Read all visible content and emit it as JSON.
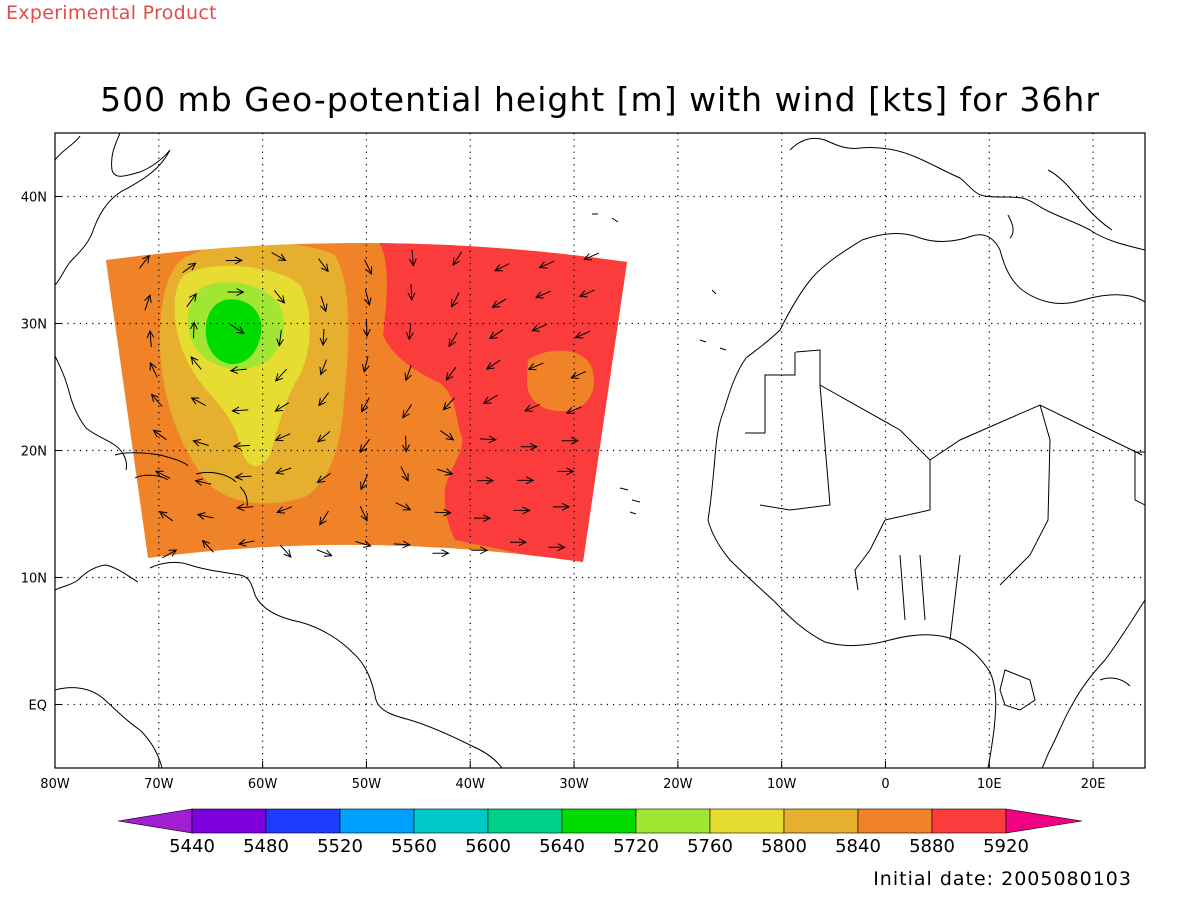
{
  "header": {
    "product_tag": "Experimental Product",
    "title": "500 mb Geo-potential height [m] with wind [kts] for 36hr"
  },
  "footer": {
    "initial_date": "Initial date: 2005080103"
  },
  "map": {
    "lat_range": [
      -5,
      45
    ],
    "lon_range": [
      -80,
      25
    ],
    "lat_ticks": [
      "40N",
      "30N",
      "20N",
      "10N",
      "EQ"
    ],
    "lon_ticks": [
      "80W",
      "70W",
      "60W",
      "50W",
      "40W",
      "30W",
      "20W",
      "10W",
      "0",
      "10E",
      "20E"
    ],
    "grid": "dotted",
    "height_levels_m": [
      5720,
      5760,
      5800,
      5840,
      5880,
      5920
    ]
  },
  "colorbar": {
    "labels": [
      "5440",
      "5480",
      "5520",
      "5560",
      "5600",
      "5640",
      "5720",
      "5760",
      "5800",
      "5840",
      "5880",
      "5920"
    ],
    "colors": [
      "#a21ed2",
      "#7d00dc",
      "#1e3cff",
      "#00a0ff",
      "#00c8c8",
      "#00d28c",
      "#00dc00",
      "#a0e632",
      "#e6dc32",
      "#e6af2d",
      "#f08228",
      "#fa3c3c",
      "#f00082"
    ],
    "extends": "both"
  }
}
